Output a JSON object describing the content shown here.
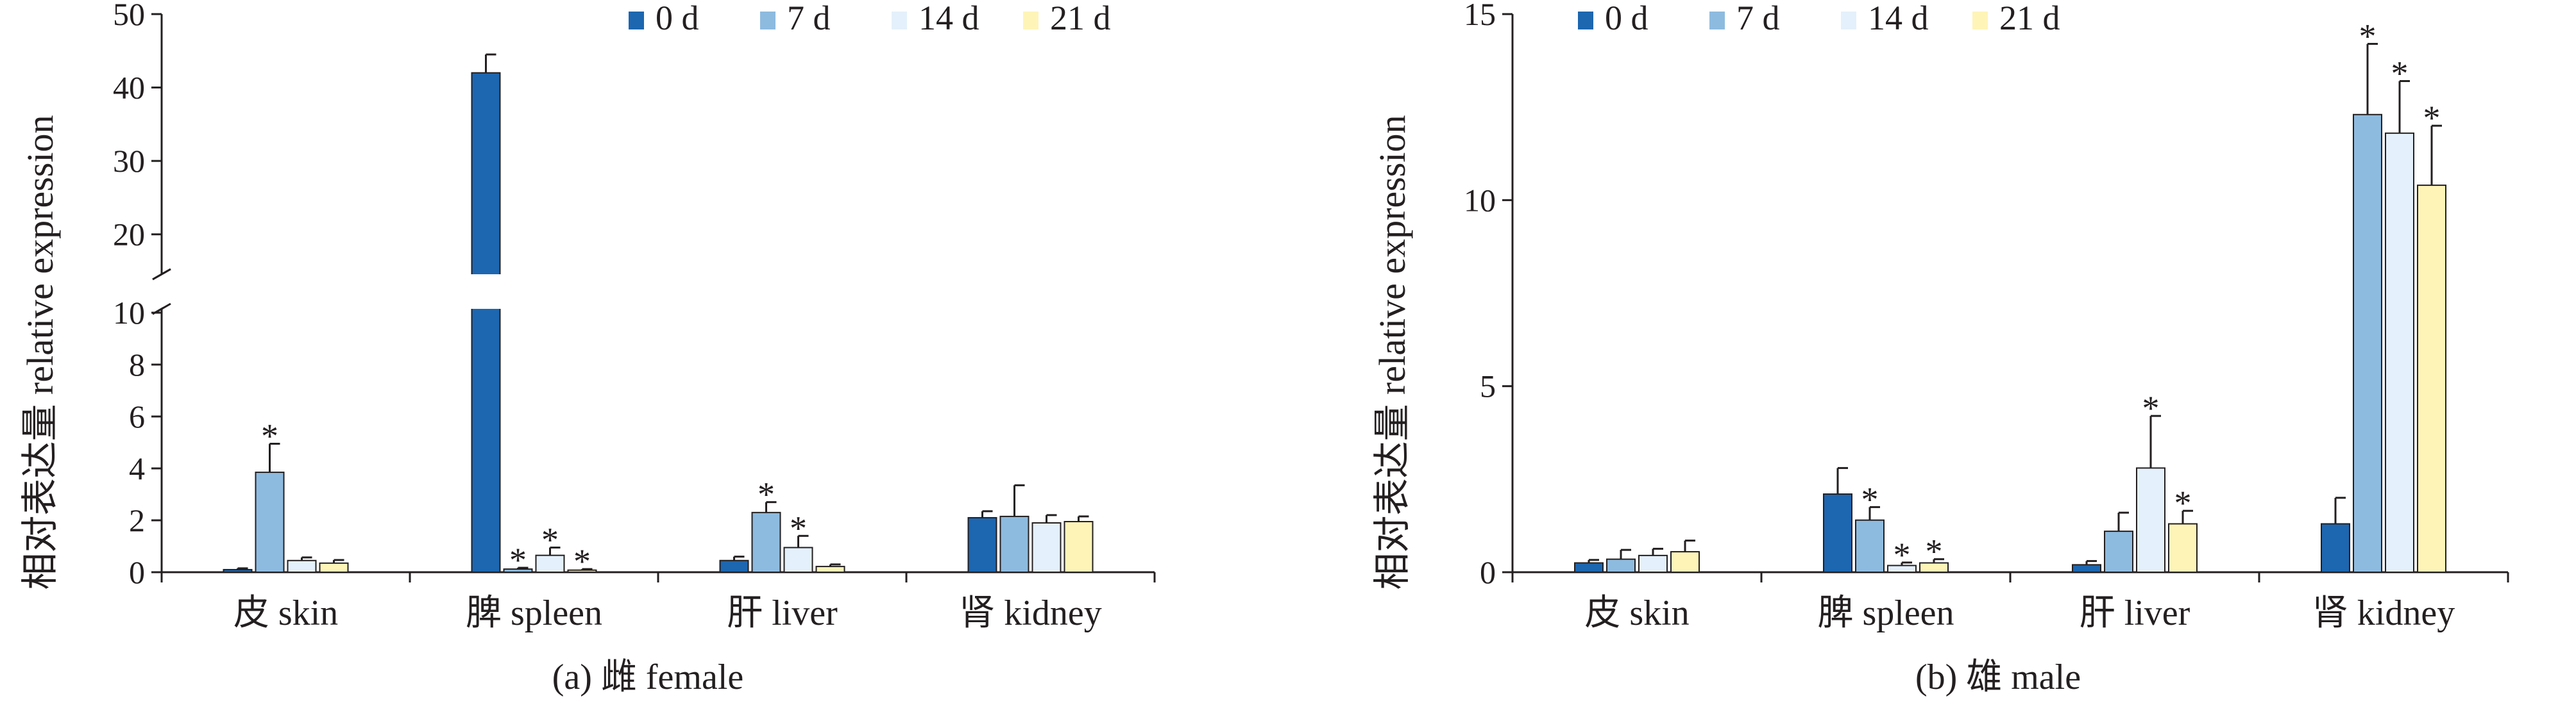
{
  "chart_data": [
    {
      "type": "bar",
      "caption": "(a) 雌 female",
      "ylabel": "相对表达量 relative expression",
      "categories": [
        "皮 skin",
        "脾 spleen",
        "肝 liver",
        "肾 kidney"
      ],
      "axis_break": {
        "lower": [
          0,
          10
        ],
        "upper": [
          15,
          50
        ]
      },
      "yticks_lower": [
        0,
        2,
        4,
        6,
        8,
        10
      ],
      "yticks_upper": [
        20,
        30,
        40,
        50
      ],
      "series": [
        {
          "name": "0 d",
          "color": "#1d66b0",
          "values": [
            0.1,
            42.0,
            0.45,
            2.1
          ],
          "errors": [
            0.05,
            2.5,
            0.15,
            0.25
          ],
          "significant": [
            false,
            false,
            false,
            false
          ]
        },
        {
          "name": "7 d",
          "color": "#8dbbdf",
          "values": [
            3.85,
            0.12,
            2.3,
            2.15
          ],
          "errors": [
            1.1,
            0.05,
            0.4,
            1.2
          ],
          "significant": [
            true,
            true,
            true,
            false
          ]
        },
        {
          "name": "14 d",
          "color": "#e4f0fb",
          "values": [
            0.45,
            0.65,
            0.95,
            1.9
          ],
          "errors": [
            0.12,
            0.3,
            0.45,
            0.3
          ],
          "significant": [
            false,
            true,
            true,
            false
          ]
        },
        {
          "name": "21 d",
          "color": "#fff4b8",
          "values": [
            0.35,
            0.08,
            0.22,
            1.95
          ],
          "errors": [
            0.12,
            0.04,
            0.08,
            0.2
          ],
          "significant": [
            false,
            true,
            false,
            false
          ]
        }
      ]
    },
    {
      "type": "bar",
      "caption": "(b) 雄 male",
      "ylabel": "相对表达量 relative expression",
      "categories": [
        "皮 skin",
        "脾 spleen",
        "肝 liver",
        "肾 kidney"
      ],
      "ylim": [
        0,
        15
      ],
      "yticks": [
        0,
        5,
        10,
        15
      ],
      "series": [
        {
          "name": "0 d",
          "color": "#1d66b0",
          "values": [
            0.25,
            2.1,
            0.2,
            1.3
          ],
          "errors": [
            0.08,
            0.7,
            0.1,
            0.7
          ],
          "significant": [
            false,
            false,
            false,
            false
          ]
        },
        {
          "name": "7 d",
          "color": "#8dbbdf",
          "values": [
            0.35,
            1.4,
            1.1,
            12.3
          ],
          "errors": [
            0.25,
            0.35,
            0.5,
            1.9
          ],
          "significant": [
            false,
            true,
            false,
            true
          ]
        },
        {
          "name": "14 d",
          "color": "#e4f0fb",
          "values": [
            0.45,
            0.18,
            2.8,
            11.8
          ],
          "errors": [
            0.18,
            0.08,
            1.4,
            1.4
          ],
          "significant": [
            false,
            true,
            true,
            true
          ]
        },
        {
          "name": "21 d",
          "color": "#fff4b8",
          "values": [
            0.55,
            0.25,
            1.3,
            10.4
          ],
          "errors": [
            0.3,
            0.1,
            0.35,
            1.6
          ],
          "significant": [
            false,
            true,
            true,
            true
          ]
        }
      ]
    }
  ]
}
